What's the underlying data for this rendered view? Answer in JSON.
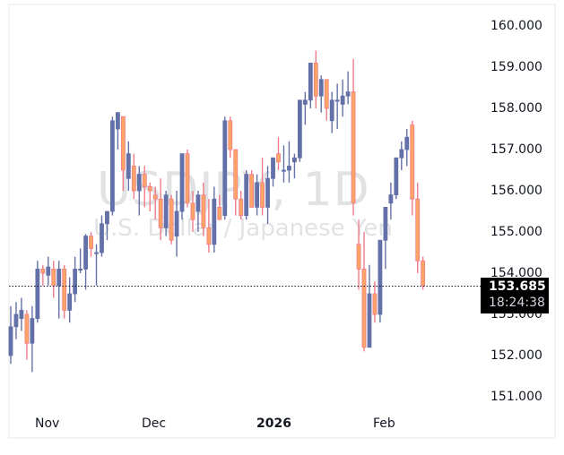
{
  "chart_data": {
    "type": "candlestick",
    "title": "USDJPY, 1D",
    "subtitle": "U.S. Dollar / Japanese Yen",
    "xlabel": "",
    "ylabel": "",
    "ylim": [
      150.5,
      160.4
    ],
    "y_ticks": [
      "160.000",
      "159.000",
      "158.000",
      "157.000",
      "156.000",
      "155.000",
      "154.000",
      "153.000",
      "152.000",
      "151.000"
    ],
    "x_ticks": [
      {
        "label": "Nov",
        "bold": false
      },
      {
        "label": "Dec",
        "bold": false
      },
      {
        "label": "2026",
        "bold": true
      },
      {
        "label": "Feb",
        "bold": false
      }
    ],
    "grid": false,
    "legend": "none",
    "last_price": "153.685",
    "countdown": "18:24:38",
    "colors": {
      "up": "#6371a8",
      "down": "#fca564",
      "down_border": "#f07b8a",
      "price_line": "#131722",
      "tag_bg": "#000000"
    },
    "candles": [
      {
        "o": 152.0,
        "h": 153.2,
        "l": 151.8,
        "c": 152.7
      },
      {
        "o": 152.7,
        "h": 153.3,
        "l": 152.4,
        "c": 153.0
      },
      {
        "o": 152.9,
        "h": 153.4,
        "l": 152.6,
        "c": 153.1
      },
      {
        "o": 153.0,
        "h": 153.1,
        "l": 151.9,
        "c": 152.3
      },
      {
        "o": 152.3,
        "h": 153.2,
        "l": 151.6,
        "c": 152.9
      },
      {
        "o": 152.9,
        "h": 154.3,
        "l": 152.8,
        "c": 154.1
      },
      {
        "o": 154.1,
        "h": 154.2,
        "l": 153.7,
        "c": 154.0
      },
      {
        "o": 153.95,
        "h": 154.4,
        "l": 153.7,
        "c": 154.15
      },
      {
        "o": 154.1,
        "h": 154.3,
        "l": 153.4,
        "c": 153.7
      },
      {
        "o": 153.7,
        "h": 154.3,
        "l": 152.9,
        "c": 154.1
      },
      {
        "o": 154.1,
        "h": 154.2,
        "l": 152.9,
        "c": 153.1
      },
      {
        "o": 153.1,
        "h": 153.9,
        "l": 152.8,
        "c": 153.5
      },
      {
        "o": 153.5,
        "h": 154.4,
        "l": 153.3,
        "c": 154.1
      },
      {
        "o": 154.1,
        "h": 154.6,
        "l": 154.0,
        "c": 154.1
      },
      {
        "o": 154.1,
        "h": 154.95,
        "l": 153.6,
        "c": 154.9
      },
      {
        "o": 154.9,
        "h": 155.0,
        "l": 154.4,
        "c": 154.6
      },
      {
        "o": 154.5,
        "h": 154.7,
        "l": 153.7,
        "c": 154.5
      },
      {
        "o": 154.5,
        "h": 155.4,
        "l": 154.4,
        "c": 155.2
      },
      {
        "o": 155.2,
        "h": 155.5,
        "l": 154.8,
        "c": 155.5
      },
      {
        "o": 155.5,
        "h": 157.8,
        "l": 155.4,
        "c": 157.7
      },
      {
        "o": 157.5,
        "h": 157.9,
        "l": 157.0,
        "c": 157.9
      },
      {
        "o": 157.8,
        "h": 157.6,
        "l": 156.0,
        "c": 156.5
      },
      {
        "o": 156.3,
        "h": 157.2,
        "l": 156.0,
        "c": 156.9
      },
      {
        "o": 156.6,
        "h": 156.9,
        "l": 155.8,
        "c": 156.0
      },
      {
        "o": 156.0,
        "h": 156.6,
        "l": 155.4,
        "c": 156.4
      },
      {
        "o": 156.4,
        "h": 156.6,
        "l": 155.6,
        "c": 156.1
      },
      {
        "o": 156.1,
        "h": 156.2,
        "l": 155.5,
        "c": 156.0
      },
      {
        "o": 155.9,
        "h": 156.1,
        "l": 155.3,
        "c": 155.8
      },
      {
        "o": 155.8,
        "h": 156.3,
        "l": 154.8,
        "c": 155.1
      },
      {
        "o": 155.1,
        "h": 156.0,
        "l": 154.9,
        "c": 155.9
      },
      {
        "o": 155.8,
        "h": 155.9,
        "l": 154.7,
        "c": 154.8
      },
      {
        "o": 154.9,
        "h": 156.0,
        "l": 154.4,
        "c": 155.5
      },
      {
        "o": 155.5,
        "h": 156.9,
        "l": 155.3,
        "c": 156.9
      },
      {
        "o": 156.9,
        "h": 157.0,
        "l": 155.6,
        "c": 155.7
      },
      {
        "o": 155.7,
        "h": 156.0,
        "l": 155.0,
        "c": 155.3
      },
      {
        "o": 155.5,
        "h": 156.0,
        "l": 155.0,
        "c": 155.9
      },
      {
        "o": 155.9,
        "h": 156.2,
        "l": 154.9,
        "c": 155.1
      },
      {
        "o": 155.1,
        "h": 155.8,
        "l": 154.5,
        "c": 154.7
      },
      {
        "o": 154.7,
        "h": 156.1,
        "l": 154.5,
        "c": 155.8
      },
      {
        "o": 155.6,
        "h": 155.9,
        "l": 155.3,
        "c": 155.3
      },
      {
        "o": 155.4,
        "h": 157.8,
        "l": 155.3,
        "c": 157.7
      },
      {
        "o": 157.7,
        "h": 157.8,
        "l": 156.8,
        "c": 157.0
      },
      {
        "o": 157.0,
        "h": 157.0,
        "l": 155.4,
        "c": 155.8
      },
      {
        "o": 155.8,
        "h": 156.0,
        "l": 155.3,
        "c": 155.4
      },
      {
        "o": 155.4,
        "h": 156.5,
        "l": 155.3,
        "c": 156.4
      },
      {
        "o": 156.4,
        "h": 156.5,
        "l": 155.8,
        "c": 155.6
      },
      {
        "o": 155.6,
        "h": 156.4,
        "l": 155.4,
        "c": 156.2
      },
      {
        "o": 156.2,
        "h": 156.8,
        "l": 155.4,
        "c": 155.6
      },
      {
        "o": 155.6,
        "h": 156.6,
        "l": 155.2,
        "c": 156.3
      },
      {
        "o": 156.3,
        "h": 156.8,
        "l": 156.1,
        "c": 156.8
      },
      {
        "o": 156.9,
        "h": 157.3,
        "l": 156.5,
        "c": 156.7
      },
      {
        "o": 156.5,
        "h": 157.1,
        "l": 156.2,
        "c": 156.5
      },
      {
        "o": 156.5,
        "h": 157.2,
        "l": 156.2,
        "c": 156.6
      },
      {
        "o": 156.7,
        "h": 156.9,
        "l": 156.3,
        "c": 156.8
      },
      {
        "o": 156.8,
        "h": 158.2,
        "l": 156.7,
        "c": 158.2
      },
      {
        "o": 158.1,
        "h": 158.4,
        "l": 157.6,
        "c": 158.2
      },
      {
        "o": 158.2,
        "h": 159.1,
        "l": 158.0,
        "c": 159.1
      },
      {
        "o": 159.1,
        "h": 159.4,
        "l": 158.0,
        "c": 158.3
      },
      {
        "o": 158.3,
        "h": 158.8,
        "l": 157.9,
        "c": 158.7
      },
      {
        "o": 158.7,
        "h": 158.7,
        "l": 157.7,
        "c": 158.0
      },
      {
        "o": 157.7,
        "h": 158.4,
        "l": 157.4,
        "c": 158.2
      },
      {
        "o": 158.2,
        "h": 158.6,
        "l": 157.5,
        "c": 158.2
      },
      {
        "o": 158.1,
        "h": 158.7,
        "l": 157.8,
        "c": 158.3
      },
      {
        "o": 158.3,
        "h": 158.9,
        "l": 158.1,
        "c": 158.4
      },
      {
        "o": 158.4,
        "h": 159.2,
        "l": 155.4,
        "c": 155.7
      },
      {
        "o": 154.7,
        "h": 155.3,
        "l": 153.6,
        "c": 154.1
      },
      {
        "o": 154.1,
        "h": 155.0,
        "l": 152.1,
        "c": 152.2
      },
      {
        "o": 152.2,
        "h": 154.2,
        "l": 152.2,
        "c": 153.5
      },
      {
        "o": 153.5,
        "h": 153.8,
        "l": 152.8,
        "c": 153.0
      },
      {
        "o": 153.0,
        "h": 154.8,
        "l": 152.8,
        "c": 154.8
      },
      {
        "o": 154.8,
        "h": 155.6,
        "l": 154.1,
        "c": 155.6
      },
      {
        "o": 155.7,
        "h": 156.2,
        "l": 155.3,
        "c": 155.9
      },
      {
        "o": 155.9,
        "h": 156.8,
        "l": 155.8,
        "c": 156.8
      },
      {
        "o": 156.8,
        "h": 157.2,
        "l": 156.5,
        "c": 157.0
      },
      {
        "o": 157.0,
        "h": 157.5,
        "l": 156.6,
        "c": 157.3
      },
      {
        "o": 157.6,
        "h": 157.7,
        "l": 155.4,
        "c": 155.8
      },
      {
        "o": 155.8,
        "h": 156.2,
        "l": 154.0,
        "c": 154.3
      },
      {
        "o": 154.3,
        "h": 154.4,
        "l": 153.6,
        "c": 153.7
      }
    ]
  },
  "axis": {
    "y": [
      "160.000",
      "159.000",
      "158.000",
      "157.000",
      "156.000",
      "155.000",
      "154.000",
      "153.000",
      "152.000",
      "151.000"
    ],
    "x": [
      "Nov",
      "Dec",
      "2026",
      "Feb"
    ]
  },
  "watermark": {
    "symbol": "USDJPY, 1D",
    "name": "U.S. Dollar / Japanese Yen"
  },
  "price_tag": {
    "price": "153.685",
    "countdown": "18:24:38"
  }
}
